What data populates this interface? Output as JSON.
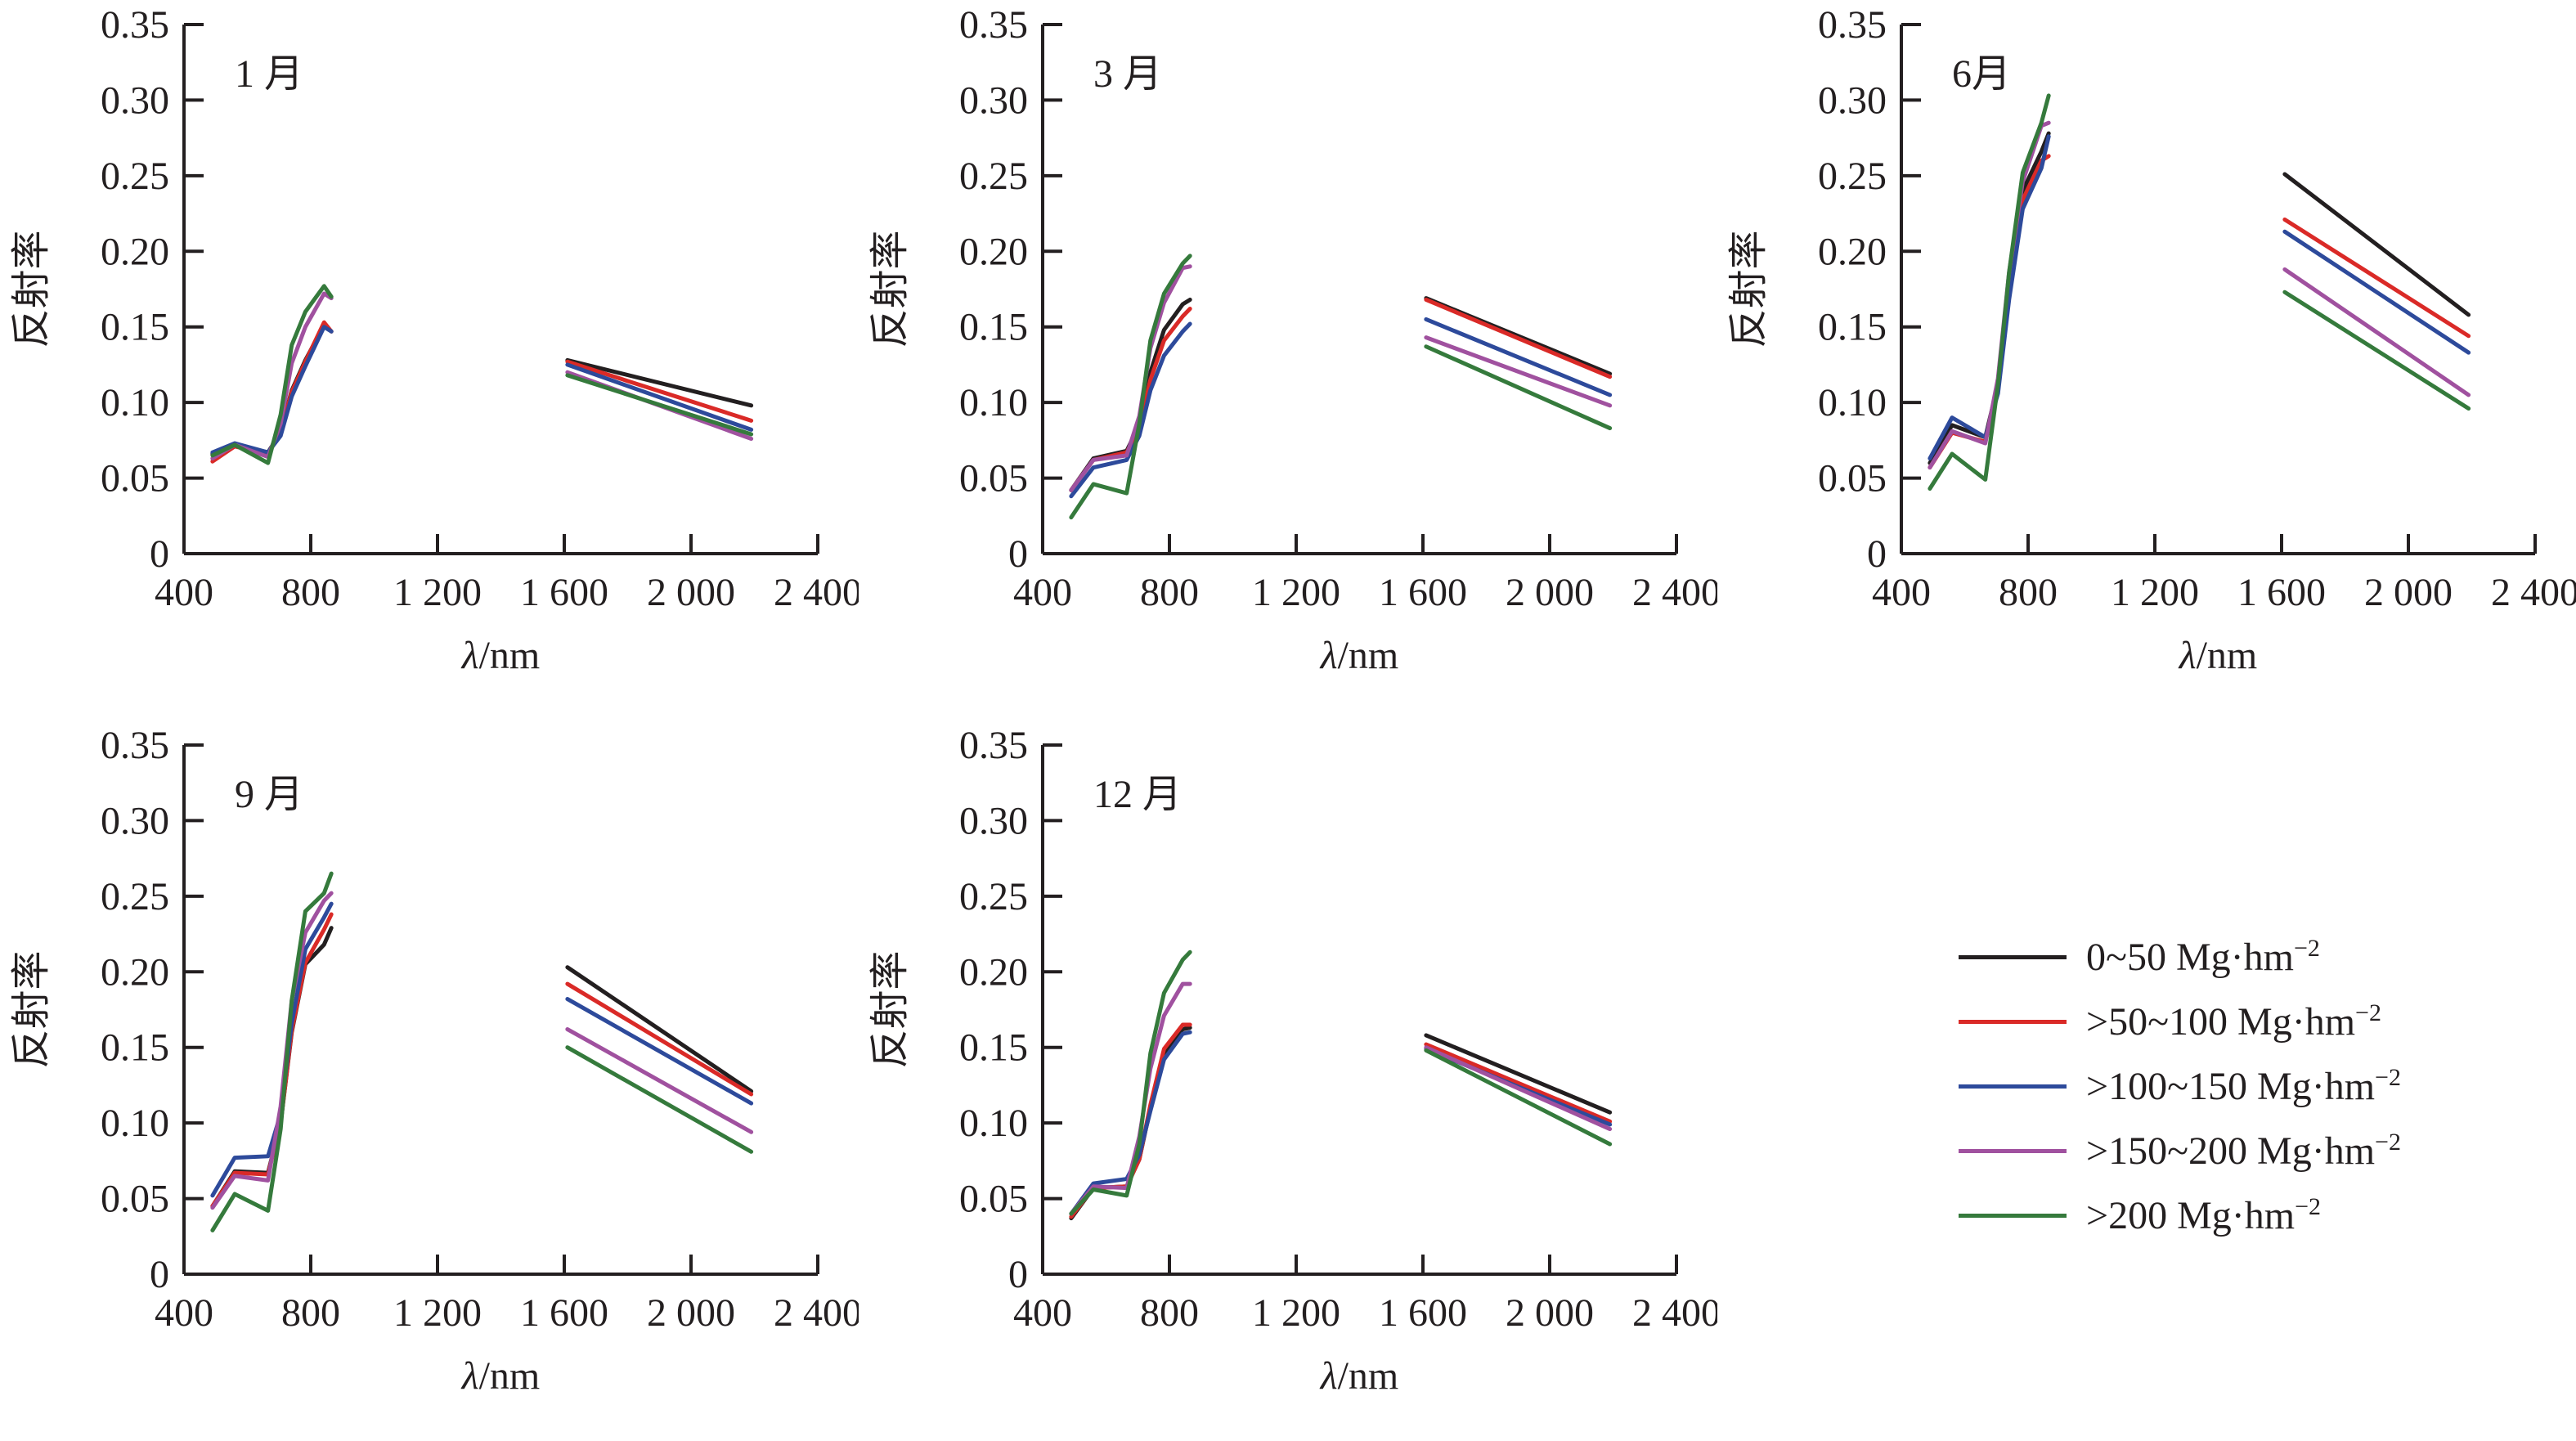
{
  "axis": {
    "xlabel_lambda": "λ",
    "xlabel_rest": "/nm",
    "ylabel": "反射率",
    "xlim": [
      400,
      2400
    ],
    "ylim": [
      0,
      0.35
    ],
    "x_ticks": [
      {
        "value": 400,
        "label": "400"
      },
      {
        "value": 800,
        "label": "800"
      },
      {
        "value": 1200,
        "label": "1 200"
      },
      {
        "value": 1600,
        "label": "1 600"
      },
      {
        "value": 2000,
        "label": "2 000"
      },
      {
        "value": 2400,
        "label": "2 400"
      }
    ],
    "y_ticks": [
      {
        "value": 0,
        "label": "0"
      },
      {
        "value": 0.05,
        "label": "0.05"
      },
      {
        "value": 0.1,
        "label": "0.10"
      },
      {
        "value": 0.15,
        "label": "0.15"
      },
      {
        "value": 0.2,
        "label": "0.20"
      },
      {
        "value": 0.25,
        "label": "0.25"
      },
      {
        "value": 0.3,
        "label": "0.30"
      },
      {
        "value": 0.35,
        "label": "0.35"
      }
    ],
    "visible_x": [
      490,
      560,
      665,
      705,
      740,
      783,
      842,
      865
    ],
    "swir_x": [
      1610,
      2190
    ]
  },
  "legend": {
    "items": [
      {
        "key": "0-50",
        "label": "0~50 Mg·hm",
        "exp": "−2",
        "color": "#231f20"
      },
      {
        "key": "50-100",
        "label": ">50~100 Mg·hm",
        "exp": "−2",
        "color": "#da2a27"
      },
      {
        "key": "100-150",
        "label": ">100~150 Mg·hm",
        "exp": "−2",
        "color": "#2d4a9b"
      },
      {
        "key": "150-200",
        "label": ">150~200 Mg·hm",
        "exp": "−2",
        "color": "#a0519f"
      },
      {
        "key": "200+",
        "label": ">200 Mg·hm",
        "exp": "−2",
        "color": "#357a3c"
      }
    ]
  },
  "chart_data": [
    {
      "type": "line",
      "title": "1 月",
      "xlabel": "λ/nm",
      "ylabel": "反射率",
      "series": [
        {
          "key": "0-50",
          "visible": [
            0.066,
            0.072,
            0.067,
            0.08,
            0.108,
            0.128,
            0.151,
            0.147
          ],
          "swir": [
            0.128,
            0.098
          ]
        },
        {
          "key": "50-100",
          "visible": [
            0.061,
            0.071,
            0.066,
            0.08,
            0.107,
            0.127,
            0.153,
            0.147
          ],
          "swir": [
            0.127,
            0.088
          ]
        },
        {
          "key": "100-150",
          "visible": [
            0.067,
            0.073,
            0.067,
            0.078,
            0.104,
            0.124,
            0.15,
            0.147
          ],
          "swir": [
            0.125,
            0.082
          ]
        },
        {
          "key": "150-200",
          "visible": [
            0.063,
            0.072,
            0.064,
            0.086,
            0.126,
            0.15,
            0.172,
            0.169
          ],
          "swir": [
            0.12,
            0.076
          ]
        },
        {
          "key": "200+",
          "visible": [
            0.065,
            0.072,
            0.06,
            0.092,
            0.138,
            0.16,
            0.177,
            0.17
          ],
          "swir": [
            0.118,
            0.079
          ]
        }
      ]
    },
    {
      "type": "line",
      "title": "3 月",
      "xlabel": "λ/nm",
      "ylabel": "反射率",
      "series": [
        {
          "key": "0-50",
          "visible": [
            0.042,
            0.063,
            0.068,
            0.085,
            0.12,
            0.148,
            0.165,
            0.168
          ],
          "swir": [
            0.169,
            0.119
          ]
        },
        {
          "key": "50-100",
          "visible": [
            0.042,
            0.062,
            0.067,
            0.083,
            0.115,
            0.141,
            0.157,
            0.162
          ],
          "swir": [
            0.168,
            0.117
          ]
        },
        {
          "key": "100-150",
          "visible": [
            0.038,
            0.057,
            0.062,
            0.078,
            0.108,
            0.131,
            0.147,
            0.152
          ],
          "swir": [
            0.155,
            0.105
          ]
        },
        {
          "key": "150-200",
          "visible": [
            0.042,
            0.062,
            0.065,
            0.091,
            0.136,
            0.166,
            0.189,
            0.19
          ],
          "swir": [
            0.143,
            0.098
          ]
        },
        {
          "key": "200+",
          "visible": [
            0.024,
            0.046,
            0.04,
            0.086,
            0.141,
            0.172,
            0.192,
            0.197
          ],
          "swir": [
            0.137,
            0.083
          ]
        }
      ]
    },
    {
      "type": "line",
      "title": "6月",
      "xlabel": "λ/nm",
      "ylabel": "反射率",
      "series": [
        {
          "key": "0-50",
          "visible": [
            0.06,
            0.085,
            0.077,
            0.112,
            0.178,
            0.24,
            0.266,
            0.278
          ],
          "swir": [
            0.251,
            0.158
          ]
        },
        {
          "key": "50-100",
          "visible": [
            0.057,
            0.08,
            0.074,
            0.108,
            0.172,
            0.234,
            0.26,
            0.263
          ],
          "swir": [
            0.221,
            0.144
          ]
        },
        {
          "key": "100-150",
          "visible": [
            0.063,
            0.09,
            0.077,
            0.106,
            0.168,
            0.228,
            0.255,
            0.276
          ],
          "swir": [
            0.213,
            0.133
          ]
        },
        {
          "key": "150-200",
          "visible": [
            0.057,
            0.081,
            0.073,
            0.116,
            0.186,
            0.246,
            0.283,
            0.285
          ],
          "swir": [
            0.188,
            0.105
          ]
        },
        {
          "key": "200+",
          "visible": [
            0.043,
            0.066,
            0.049,
            0.112,
            0.186,
            0.252,
            0.285,
            0.303
          ],
          "swir": [
            0.173,
            0.096
          ]
        }
      ]
    },
    {
      "type": "line",
      "title": "9 月",
      "xlabel": "λ/nm",
      "ylabel": "反射率",
      "series": [
        {
          "key": "0-50",
          "visible": [
            0.045,
            0.068,
            0.067,
            0.1,
            0.16,
            0.205,
            0.218,
            0.229
          ],
          "swir": [
            0.203,
            0.121
          ]
        },
        {
          "key": "50-100",
          "visible": [
            0.045,
            0.067,
            0.066,
            0.1,
            0.161,
            0.206,
            0.228,
            0.238
          ],
          "swir": [
            0.192,
            0.119
          ]
        },
        {
          "key": "100-150",
          "visible": [
            0.052,
            0.077,
            0.078,
            0.106,
            0.166,
            0.215,
            0.236,
            0.245
          ],
          "swir": [
            0.182,
            0.113
          ]
        },
        {
          "key": "150-200",
          "visible": [
            0.044,
            0.065,
            0.062,
            0.111,
            0.181,
            0.226,
            0.247,
            0.252
          ],
          "swir": [
            0.162,
            0.094
          ]
        },
        {
          "key": "200+",
          "visible": [
            0.029,
            0.053,
            0.042,
            0.096,
            0.181,
            0.24,
            0.252,
            0.265
          ],
          "swir": [
            0.15,
            0.081
          ]
        }
      ]
    },
    {
      "type": "line",
      "title": "12 月",
      "xlabel": "λ/nm",
      "ylabel": "反射率",
      "series": [
        {
          "key": "0-50",
          "visible": [
            0.037,
            0.057,
            0.058,
            0.076,
            0.11,
            0.146,
            0.162,
            0.163
          ],
          "swir": [
            0.158,
            0.107
          ]
        },
        {
          "key": "50-100",
          "visible": [
            0.038,
            0.057,
            0.058,
            0.076,
            0.112,
            0.149,
            0.165,
            0.165
          ],
          "swir": [
            0.152,
            0.101
          ]
        },
        {
          "key": "100-150",
          "visible": [
            0.04,
            0.06,
            0.063,
            0.079,
            0.108,
            0.142,
            0.159,
            0.16
          ],
          "swir": [
            0.149,
            0.099
          ]
        },
        {
          "key": "150-200",
          "visible": [
            0.04,
            0.058,
            0.057,
            0.091,
            0.136,
            0.171,
            0.192,
            0.192
          ],
          "swir": [
            0.15,
            0.096
          ]
        },
        {
          "key": "200+",
          "visible": [
            0.04,
            0.056,
            0.052,
            0.086,
            0.146,
            0.186,
            0.208,
            0.213
          ],
          "swir": [
            0.148,
            0.086
          ]
        }
      ]
    }
  ]
}
